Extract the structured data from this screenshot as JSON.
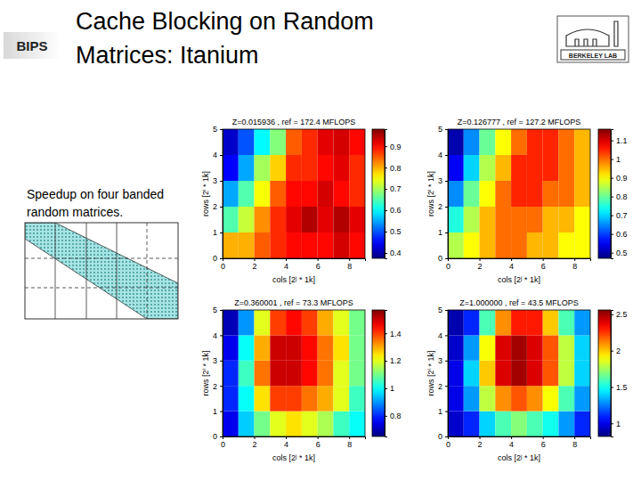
{
  "slide": {
    "title_lines": [
      "Cache Blocking on Random",
      "Matrices: Itanium"
    ],
    "logo_left": "BIPS",
    "logo_right": "BERKELEY LAB",
    "caption_lines": [
      "Speedup on four banded",
      "random matrices."
    ]
  },
  "chart_data": [
    {
      "type": "heatmap",
      "title": "Z=0.015936 , ref = 172.4 MFLOPS",
      "x_label": "cols [2ʲ * 1k]",
      "y_label": "rows [2ⁱ * 1k]",
      "color": "jet",
      "x": [
        0,
        1,
        2,
        3,
        4,
        5,
        6,
        7,
        8
      ],
      "y": [
        0,
        1,
        2,
        3,
        4
      ],
      "values": [
        [
          0.8,
          0.8,
          0.85,
          0.88,
          0.9,
          0.9,
          0.9,
          0.93,
          0.9
        ],
        [
          0.65,
          0.72,
          0.82,
          0.88,
          0.92,
          0.95,
          0.92,
          0.95,
          0.92
        ],
        [
          0.55,
          0.65,
          0.75,
          0.85,
          0.9,
          0.9,
          0.93,
          0.9,
          0.88
        ],
        [
          0.45,
          0.55,
          0.7,
          0.78,
          0.88,
          0.88,
          0.9,
          0.92,
          0.88
        ],
        [
          0.42,
          0.5,
          0.6,
          0.68,
          0.85,
          0.88,
          0.92,
          0.93,
          0.9
        ]
      ],
      "xlim": [
        0,
        9
      ],
      "xticks": [
        0,
        2,
        4,
        6,
        8
      ],
      "ylim": [
        0,
        5
      ],
      "yticks": [
        0,
        1,
        2,
        3,
        4,
        5
      ],
      "colorbar_range": [
        0.375,
        0.98
      ],
      "colorbar_ticks": [
        0.4,
        0.5,
        0.6,
        0.7,
        0.8,
        0.9
      ]
    },
    {
      "type": "heatmap",
      "title": "Z=0.126777 , ref = 127.2 MFLOPS",
      "x_label": "cols [2ʲ * 1k]",
      "y_label": "rows [2ⁱ * 1k]",
      "color": "jet",
      "x": [
        0,
        1,
        2,
        3,
        4,
        5,
        6,
        7,
        8
      ],
      "y": [
        0,
        1,
        2,
        3,
        4
      ],
      "values": [
        [
          0.85,
          0.9,
          0.95,
          1.0,
          1.0,
          0.95,
          0.95,
          0.9,
          0.9
        ],
        [
          0.75,
          0.85,
          0.95,
          1.0,
          1.0,
          1.0,
          0.95,
          0.95,
          0.9
        ],
        [
          0.65,
          0.8,
          0.9,
          1.0,
          1.05,
          1.05,
          1.0,
          1.0,
          0.95
        ],
        [
          0.55,
          0.7,
          0.85,
          0.95,
          1.05,
          1.05,
          1.05,
          1.0,
          0.95
        ],
        [
          0.5,
          0.65,
          0.8,
          0.9,
          1.0,
          1.05,
          1.05,
          1.0,
          0.95
        ]
      ],
      "xlim": [
        0,
        9
      ],
      "xticks": [
        0,
        2,
        4,
        6,
        8
      ],
      "ylim": [
        0,
        5
      ],
      "yticks": [
        0,
        1,
        2,
        3,
        4,
        5
      ],
      "colorbar_range": [
        0.47,
        1.16
      ],
      "colorbar_ticks": [
        0.5,
        0.6,
        0.7,
        0.8,
        0.9,
        1,
        1.1
      ]
    },
    {
      "type": "heatmap",
      "title": "Z=0.360001 , ref = 73.3 MFLOPS",
      "x_label": "cols [2ʲ * 1k]",
      "y_label": "rows [2ⁱ * 1k]",
      "color": "jet",
      "x": [
        0,
        1,
        2,
        3,
        4,
        5,
        6,
        7,
        8
      ],
      "y": [
        0,
        1,
        2,
        3,
        4
      ],
      "values": [
        [
          0.75,
          0.95,
          1.1,
          1.2,
          1.25,
          1.2,
          1.15,
          1.05,
          1.0
        ],
        [
          0.8,
          1.0,
          1.25,
          1.4,
          1.4,
          1.35,
          1.3,
          1.2,
          1.05
        ],
        [
          0.8,
          1.05,
          1.35,
          1.5,
          1.5,
          1.45,
          1.35,
          1.2,
          1.1
        ],
        [
          0.75,
          1.0,
          1.3,
          1.5,
          1.5,
          1.45,
          1.35,
          1.25,
          1.1
        ],
        [
          0.7,
          0.9,
          1.2,
          1.4,
          1.45,
          1.4,
          1.3,
          1.2,
          1.1
        ]
      ],
      "xlim": [
        0,
        9
      ],
      "xticks": [
        0,
        2,
        4,
        6,
        8
      ],
      "ylim": [
        0,
        5
      ],
      "yticks": [
        0,
        1,
        2,
        3,
        4,
        5
      ],
      "colorbar_range": [
        0.65,
        1.57
      ],
      "colorbar_ticks": [
        0.8,
        1,
        1.2,
        1.4
      ]
    },
    {
      "type": "heatmap",
      "title": "Z=1.000000 , ref = 43.5 MFLOPS",
      "x_label": "cols [2ʲ * 1k]",
      "y_label": "rows [2ⁱ * 1k]",
      "color": "jet",
      "x": [
        0,
        1,
        2,
        3,
        4,
        5,
        6,
        7,
        8
      ],
      "y": [
        0,
        1,
        2,
        3,
        4
      ],
      "values": [
        [
          0.95,
          1.1,
          1.4,
          1.6,
          1.7,
          1.6,
          1.5,
          1.3,
          1.1
        ],
        [
          1.0,
          1.3,
          1.8,
          2.1,
          2.2,
          2.1,
          1.9,
          1.6,
          1.3
        ],
        [
          1.0,
          1.4,
          2.0,
          2.4,
          2.5,
          2.4,
          2.2,
          1.8,
          1.4
        ],
        [
          0.95,
          1.3,
          1.9,
          2.4,
          2.5,
          2.4,
          2.2,
          1.8,
          1.4
        ],
        [
          0.9,
          1.1,
          1.6,
          2.1,
          2.3,
          2.3,
          2.0,
          1.6,
          1.3
        ]
      ],
      "xlim": [
        0,
        9
      ],
      "xticks": [
        0,
        2,
        4,
        6,
        8
      ],
      "ylim": [
        0,
        5
      ],
      "yticks": [
        0,
        1,
        2,
        3,
        4,
        5
      ],
      "colorbar_range": [
        0.82,
        2.56
      ],
      "colorbar_ticks": [
        1,
        1.5,
        2,
        2.5
      ]
    }
  ]
}
